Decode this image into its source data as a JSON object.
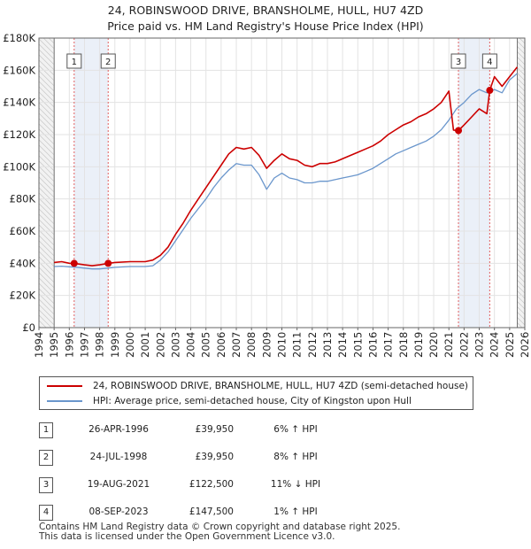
{
  "chart_data": {
    "type": "line",
    "title": "24, ROBINSWOOD DRIVE, BRANSHOLME, HULL, HU7 4ZD",
    "subtitle": "Price paid vs. HM Land Registry's House Price Index (HPI)",
    "xlabel": "",
    "ylabel": "",
    "xlim": [
      1994,
      2026
    ],
    "ylim": [
      0,
      180000
    ],
    "x_ticks": [
      "1994",
      "1995",
      "1996",
      "1997",
      "1998",
      "1999",
      "2000",
      "2001",
      "2002",
      "2003",
      "2004",
      "2005",
      "2006",
      "2007",
      "2008",
      "2009",
      "2010",
      "2011",
      "2012",
      "2013",
      "2014",
      "2015",
      "2016",
      "2017",
      "2018",
      "2019",
      "2020",
      "2021",
      "2022",
      "2023",
      "2024",
      "2025",
      "2026"
    ],
    "y_ticks": [
      {
        "value": 0,
        "label": "£0"
      },
      {
        "value": 20000,
        "label": "£20K"
      },
      {
        "value": 40000,
        "label": "£40K"
      },
      {
        "value": 60000,
        "label": "£60K"
      },
      {
        "value": 80000,
        "label": "£80K"
      },
      {
        "value": 100000,
        "label": "£100K"
      },
      {
        "value": 120000,
        "label": "£120K"
      },
      {
        "value": 140000,
        "label": "£140K"
      },
      {
        "value": 160000,
        "label": "£160K"
      },
      {
        "value": 180000,
        "label": "£180K"
      }
    ],
    "data_range": [
      1995,
      2025.5
    ],
    "series": [
      {
        "name": "24, ROBINSWOOD DRIVE, BRANSHOLME, HULL, HU7 4ZD (semi-detached house)",
        "color": "#cc0000",
        "x": [
          1995,
          1995.5,
          1996,
          1996.32,
          1997,
          1997.5,
          1998,
          1998.56,
          1999,
          2000,
          2001,
          2001.5,
          2002,
          2002.5,
          2003,
          2003.5,
          2004,
          2004.5,
          2005,
          2005.5,
          2006,
          2006.5,
          2007,
          2007.5,
          2008,
          2008.5,
          2009,
          2009.5,
          2010,
          2010.5,
          2011,
          2011.5,
          2012,
          2012.5,
          2013,
          2013.5,
          2014,
          2014.5,
          2015,
          2015.5,
          2016,
          2016.5,
          2017,
          2017.5,
          2018,
          2018.5,
          2019,
          2019.5,
          2020,
          2020.5,
          2021,
          2021.3,
          2021.63,
          2022,
          2022.5,
          2023,
          2023.5,
          2023.69,
          2024,
          2024.5,
          2025,
          2025.5
        ],
        "values": [
          40500,
          41000,
          40000,
          39950,
          39000,
          38500,
          39000,
          39950,
          40500,
          41000,
          41000,
          42000,
          45000,
          50000,
          58000,
          65000,
          73000,
          80000,
          87000,
          94000,
          101000,
          108000,
          112000,
          111000,
          112000,
          107000,
          99000,
          104000,
          108000,
          105000,
          104000,
          101000,
          100000,
          102000,
          102000,
          103000,
          105000,
          107000,
          109000,
          111000,
          113000,
          116000,
          120000,
          123000,
          126000,
          128000,
          131000,
          133000,
          136000,
          140000,
          147000,
          122800,
          122500,
          126000,
          131000,
          136000,
          133000,
          147500,
          156000,
          150000,
          156000,
          162000
        ]
      },
      {
        "name": "HPI: Average price, semi-detached house, City of Kingston upon Hull",
        "color": "#6a96cc",
        "x": [
          1995,
          1995.5,
          1996,
          1996.5,
          1997,
          1997.5,
          1998,
          1998.5,
          1999,
          2000,
          2001,
          2001.5,
          2002,
          2002.5,
          2003,
          2003.5,
          2004,
          2004.5,
          2005,
          2005.5,
          2006,
          2006.5,
          2007,
          2007.5,
          2008,
          2008.5,
          2009,
          2009.5,
          2010,
          2010.5,
          2011,
          2011.5,
          2012,
          2012.5,
          2013,
          2013.5,
          2014,
          2014.5,
          2015,
          2015.5,
          2016,
          2016.5,
          2017,
          2017.5,
          2018,
          2018.5,
          2019,
          2019.5,
          2020,
          2020.5,
          2021,
          2021.5,
          2022,
          2022.5,
          2023,
          2023.5,
          2024,
          2024.5,
          2025,
          2025.5
        ],
        "values": [
          38000,
          38200,
          37800,
          37500,
          37000,
          36500,
          36500,
          37000,
          37500,
          38000,
          38000,
          38500,
          42000,
          47000,
          54000,
          61000,
          68000,
          74000,
          80000,
          87000,
          93000,
          98000,
          102000,
          101000,
          101000,
          95000,
          86000,
          93000,
          96000,
          93000,
          92000,
          90000,
          90000,
          91000,
          91000,
          92000,
          93000,
          94000,
          95000,
          97000,
          99000,
          102000,
          105000,
          108000,
          110000,
          112000,
          114000,
          116000,
          119000,
          123000,
          129000,
          136000,
          140000,
          145000,
          148000,
          146000,
          148000,
          146000,
          154000,
          158000
        ]
      }
    ],
    "sales": [
      {
        "label": "1",
        "x": 1996.32,
        "value": 39950
      },
      {
        "label": "2",
        "x": 1998.56,
        "value": 39950
      },
      {
        "label": "3",
        "x": 2021.63,
        "value": 122500
      },
      {
        "label": "4",
        "x": 2023.69,
        "value": 147500
      }
    ],
    "shade_ranges": [
      [
        1994,
        1995
      ],
      [
        2025.5,
        2026
      ]
    ],
    "highlight_ranges": [
      [
        1996.32,
        1998.56
      ],
      [
        2021.63,
        2023.69
      ]
    ]
  },
  "legend": {
    "property_label": "24, ROBINSWOOD DRIVE, BRANSHOLME, HULL, HU7 4ZD (semi-detached house)",
    "hpi_label": "HPI: Average price, semi-detached house, City of Kingston upon Hull",
    "property_color": "#cc0000",
    "hpi_color": "#6a96cc"
  },
  "sales_table": [
    {
      "num": "1",
      "date": "26-APR-1996",
      "price": "£39,950",
      "hpi": "6% ↑ HPI"
    },
    {
      "num": "2",
      "date": "24-JUL-1998",
      "price": "£39,950",
      "hpi": "8% ↑ HPI"
    },
    {
      "num": "3",
      "date": "19-AUG-2021",
      "price": "£122,500",
      "hpi": "11% ↓ HPI"
    },
    {
      "num": "4",
      "date": "08-SEP-2023",
      "price": "£147,500",
      "hpi": "1% ↑ HPI"
    }
  ],
  "footer": {
    "line1": "Contains HM Land Registry data © Crown copyright and database right 2025.",
    "line2": "This data is licensed under the Open Government Licence v3.0."
  }
}
